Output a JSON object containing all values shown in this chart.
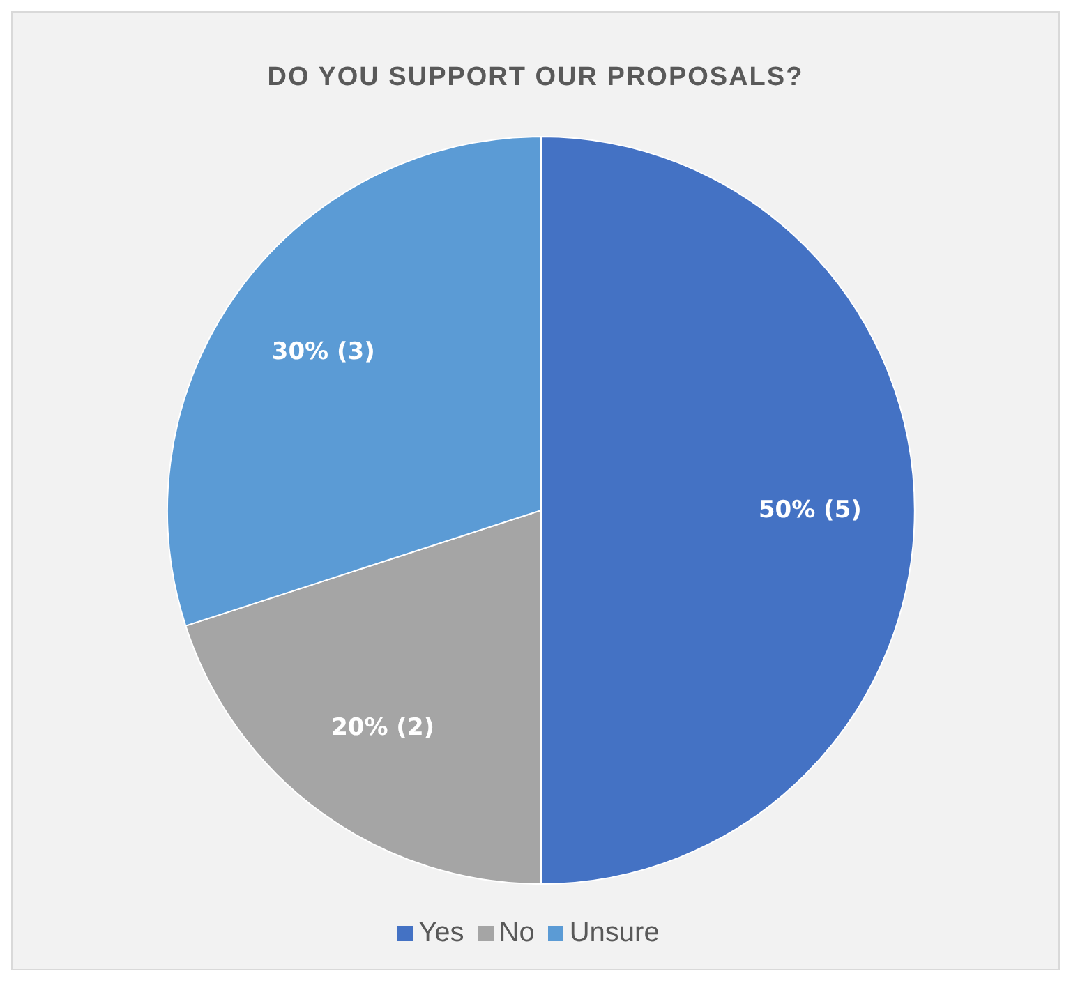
{
  "chart_data": {
    "type": "pie",
    "title": "DO YOU SUPPORT OUR PROPOSALS?",
    "categories": [
      "Yes",
      "No",
      "Unsure"
    ],
    "values": [
      5,
      2,
      3
    ],
    "colors": [
      "#4472c4",
      "#a5a5a5",
      "#5b9bd5"
    ],
    "value_labels": [
      "50% (5)",
      "20% (2)",
      "30% (3)"
    ],
    "legend": "bottom"
  }
}
